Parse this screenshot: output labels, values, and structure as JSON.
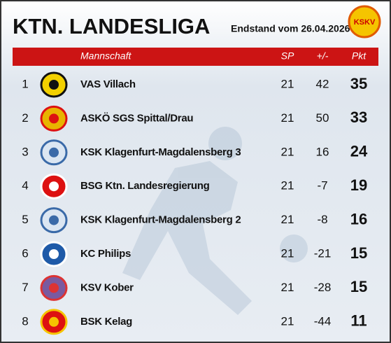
{
  "header": {
    "title": "KTN. LANDESLIGA",
    "subtitle": "Endstand vom 26.04.2026",
    "logo_text": "KSKV"
  },
  "table": {
    "columns": [
      "Mannschaft",
      "SP",
      "+/-",
      "Pkt"
    ],
    "rows": [
      [
        1,
        "VAS Villach",
        21,
        42,
        35
      ],
      [
        2,
        "ASKÖ SGS Spittal/Drau",
        21,
        50,
        33
      ],
      [
        3,
        "KSK Klagenfurt-Magdalensberg 3",
        21,
        16,
        24
      ],
      [
        4,
        "BSG Ktn. Landesregierung",
        21,
        -7,
        19
      ],
      [
        5,
        "KSK Klagenfurt-Magdalensberg 2",
        21,
        -8,
        16
      ],
      [
        6,
        "KC Philips",
        21,
        -21,
        15
      ],
      [
        7,
        "KSV Kober",
        21,
        -28,
        15
      ],
      [
        8,
        "BSK Kelag",
        21,
        -44,
        11
      ]
    ]
  }
}
